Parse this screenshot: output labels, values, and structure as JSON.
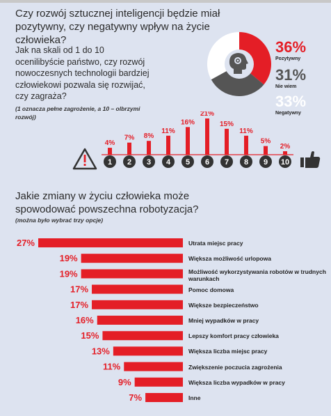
{
  "header": {
    "title": "Czy rozwój sztucznej inteligencji będzie miał pozytywny, czy negatywny wpływ na życie człowieka?",
    "question": "Jak na skali od 1 do 10 ocenilibyście państwo, czy rozwój nowoczesnych technologii bardziej człowiekowi pozwala się rozwijać, czy zagraża?",
    "note": "(1 oznacza pełne zagrożenie, a 10 – olbrzymi rozwój)"
  },
  "donut": {
    "items": [
      {
        "pct": "36%",
        "label": "Pozytywny",
        "value": 36,
        "color": "#e41e26"
      },
      {
        "pct": "31%",
        "label": "Nie wiem",
        "value": 31,
        "color": "#555555"
      },
      {
        "pct": "33%",
        "label": "Negatywny",
        "value": 33,
        "color": "#ffffff"
      }
    ]
  },
  "chart_data": [
    {
      "type": "bar",
      "categories": [
        "1",
        "2",
        "3",
        "4",
        "5",
        "6",
        "7",
        "8",
        "9",
        "10"
      ],
      "values": [
        4,
        7,
        8,
        11,
        16,
        21,
        15,
        11,
        5,
        2
      ],
      "value_labels": [
        "4%",
        "7%",
        "8%",
        "11%",
        "16%",
        "21%",
        "15%",
        "11%",
        "5%",
        "2%"
      ],
      "color": "#e41e26"
    },
    {
      "type": "bar",
      "orientation": "horizontal",
      "title": "Jakie zmiany w życiu człowieka może spowodować powszechna robotyzacja?",
      "subtitle": "(można było wybrać trzy opcje)",
      "categories": [
        "Utrata miejsc pracy",
        "Większa możliwość urlopowa",
        "Możliwość wykorzystywania robotów w trudnych warunkach",
        "Pomoc domowa",
        "Większe bezpieczeństwo",
        "Mniej wypadków w pracy",
        "Lepszy komfort pracy człowieka",
        "Większa liczba miejsc pracy",
        "Zwiększenie poczucia zagrożenia",
        "Większa liczba wypadków w pracy",
        "Inne"
      ],
      "values": [
        27,
        19,
        19,
        17,
        17,
        16,
        15,
        13,
        11,
        9,
        7
      ],
      "value_labels": [
        "27%",
        "19%",
        "19%",
        "17%",
        "17%",
        "16%",
        "15%",
        "13%",
        "11%",
        "9%",
        "7%"
      ],
      "color": "#e41e26"
    }
  ]
}
